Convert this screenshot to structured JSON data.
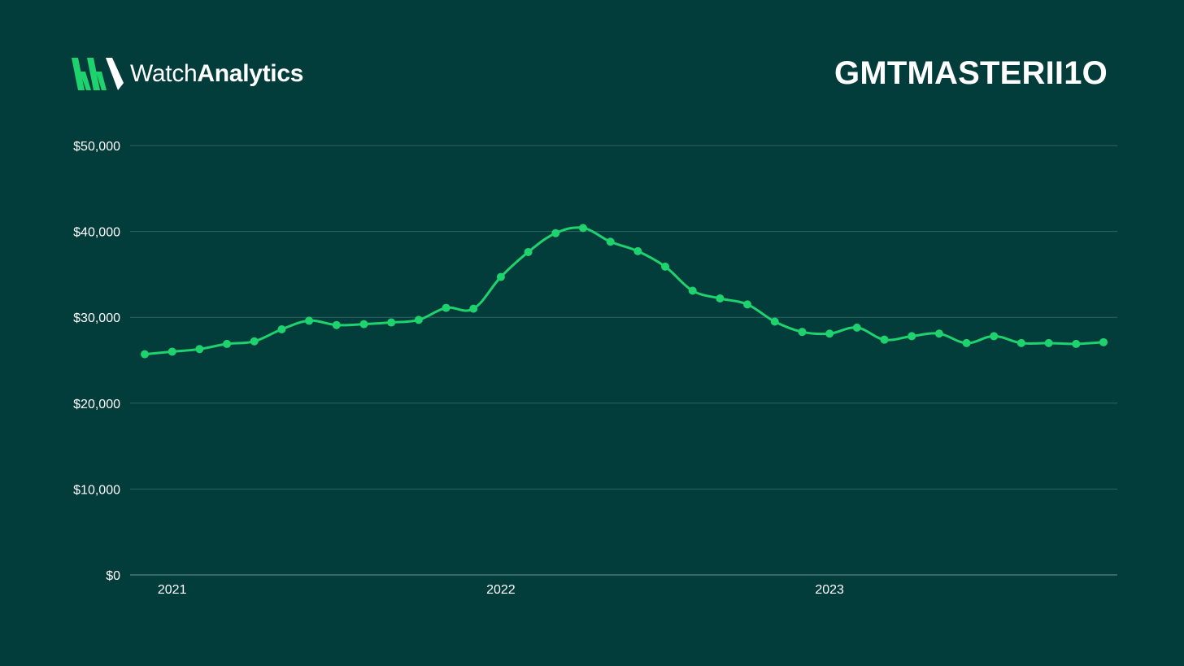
{
  "brand": {
    "name_light": "Watch",
    "name_bold": "Analytics"
  },
  "page_title": "GMTMASTERII1O",
  "colors": {
    "background": "#023c3b",
    "line": "#1ed36e",
    "grid": "#2e6564",
    "text": "#ffffff"
  },
  "chart_data": {
    "type": "line",
    "title": "",
    "xlabel": "",
    "ylabel": "",
    "ylim": [
      0,
      50000
    ],
    "y_ticks": [
      {
        "value": 0,
        "label": "$0"
      },
      {
        "value": 10000,
        "label": "$10,000"
      },
      {
        "value": 20000,
        "label": "$20,000"
      },
      {
        "value": 30000,
        "label": "$30,000"
      },
      {
        "value": 40000,
        "label": "$40,000"
      },
      {
        "value": 50000,
        "label": "$50,000"
      }
    ],
    "x_ticks": [
      {
        "label": "2021",
        "date": "2021-01"
      },
      {
        "label": "2022",
        "date": "2022-01"
      },
      {
        "label": "2023",
        "date": "2023-01"
      }
    ],
    "grid": true,
    "series": [
      {
        "x": [
          "2020-12",
          "2021-01",
          "2021-02",
          "2021-03",
          "2021-04",
          "2021-05",
          "2021-06",
          "2021-07",
          "2021-08",
          "2021-09",
          "2021-10",
          "2021-11",
          "2021-12",
          "2022-01",
          "2022-02",
          "2022-03",
          "2022-04",
          "2022-05",
          "2022-06",
          "2022-07",
          "2022-08",
          "2022-09",
          "2022-10",
          "2022-11",
          "2022-12",
          "2023-01",
          "2023-02",
          "2023-03",
          "2023-04",
          "2023-05",
          "2023-06",
          "2023-07",
          "2023-08",
          "2023-09",
          "2023-10",
          "2023-11"
        ],
        "values": [
          25700,
          26000,
          26300,
          26900,
          27200,
          28600,
          29600,
          29100,
          29200,
          29400,
          29700,
          31100,
          31000,
          34700,
          37600,
          39800,
          40400,
          38800,
          37700,
          35900,
          33100,
          32200,
          31500,
          29500,
          28300,
          28100,
          28800,
          27400,
          27800,
          28100,
          27000,
          27800,
          27000,
          27000,
          26900,
          27100
        ]
      }
    ]
  }
}
